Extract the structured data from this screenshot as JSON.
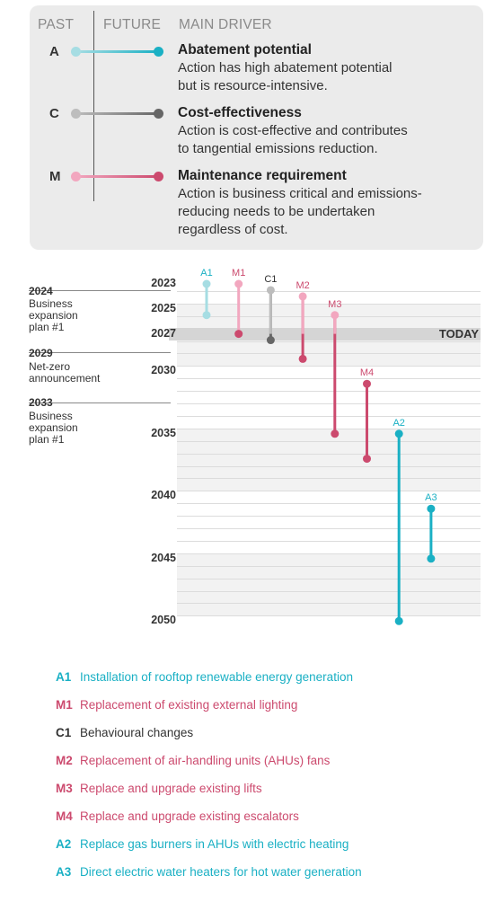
{
  "key": {
    "headers": {
      "past": "PAST",
      "future": "FUTURE",
      "driver": "MAIN DRIVER"
    },
    "items": [
      {
        "letter": "A",
        "title": "Abatement potential",
        "desc": [
          "Action has high abatement potential",
          "but is resource-intensive."
        ],
        "color_light": "#a6dde3",
        "color": "#1ab0c4"
      },
      {
        "letter": "C",
        "title": "Cost-effectiveness",
        "desc": [
          "Action is cost-effective and contributes",
          "to tangential emissions reduction."
        ],
        "color_light": "#bdbdbd",
        "color": "#666666"
      },
      {
        "letter": "M",
        "title": "Maintenance requirement",
        "desc": [
          "Action is business critical and emissions-",
          "reducing needs to be undertaken",
          "regardless of cost."
        ],
        "color_light": "#f2a7bf",
        "color": "#cc4a6e"
      }
    ]
  },
  "timeline": {
    "today_label": "TODAY",
    "today_year": 2027,
    "year_labels": [
      2023,
      2025,
      2027,
      2030,
      2035,
      2040,
      2045,
      2050
    ],
    "milestones": [
      {
        "year": "2024",
        "text": [
          "Business",
          "expansion",
          "plan #1"
        ]
      },
      {
        "year": "2029",
        "text": [
          "Net-zero",
          "announcement"
        ]
      },
      {
        "year": "2033",
        "text": [
          "Business",
          "expansion",
          "plan #1"
        ]
      }
    ]
  },
  "chart_data": {
    "type": "timeline-range",
    "y_axis": "year",
    "ylim": [
      2023,
      2050
    ],
    "series": [
      {
        "code": "A1",
        "driver": "A",
        "start": 2023,
        "end": 2025.5
      },
      {
        "code": "M1",
        "driver": "M",
        "start": 2023,
        "end": 2027
      },
      {
        "code": "C1",
        "driver": "C",
        "start": 2023.5,
        "end": 2027.5
      },
      {
        "code": "M2",
        "driver": "M",
        "start": 2024,
        "end": 2029
      },
      {
        "code": "M3",
        "driver": "M",
        "start": 2025.5,
        "end": 2035
      },
      {
        "code": "M4",
        "driver": "M",
        "start": 2031,
        "end": 2037
      },
      {
        "code": "A2",
        "driver": "A",
        "start": 2035,
        "end": 2050
      },
      {
        "code": "A3",
        "driver": "A",
        "start": 2041,
        "end": 2045
      }
    ]
  },
  "legend": [
    {
      "code": "A1",
      "text": "Installation of rooftop renewable energy generation",
      "color": "#1ab0c4"
    },
    {
      "code": "M1",
      "text": "Replacement of existing external lighting",
      "color": "#cc4a6e"
    },
    {
      "code": "C1",
      "text": "Behavioural changes",
      "color": "#333333"
    },
    {
      "code": "M2",
      "text": "Replacement of air-handling units (AHUs) fans",
      "color": "#cc4a6e"
    },
    {
      "code": "M3",
      "text": "Replace and upgrade existing lifts",
      "color": "#cc4a6e"
    },
    {
      "code": "M4",
      "text": "Replace and upgrade existing escalators",
      "color": "#cc4a6e"
    },
    {
      "code": "A2",
      "text": "Replace gas burners in AHUs with electric heating",
      "color": "#1ab0c4"
    },
    {
      "code": "A3",
      "text": "Direct electric water heaters for hot water generation",
      "color": "#1ab0c4"
    }
  ]
}
